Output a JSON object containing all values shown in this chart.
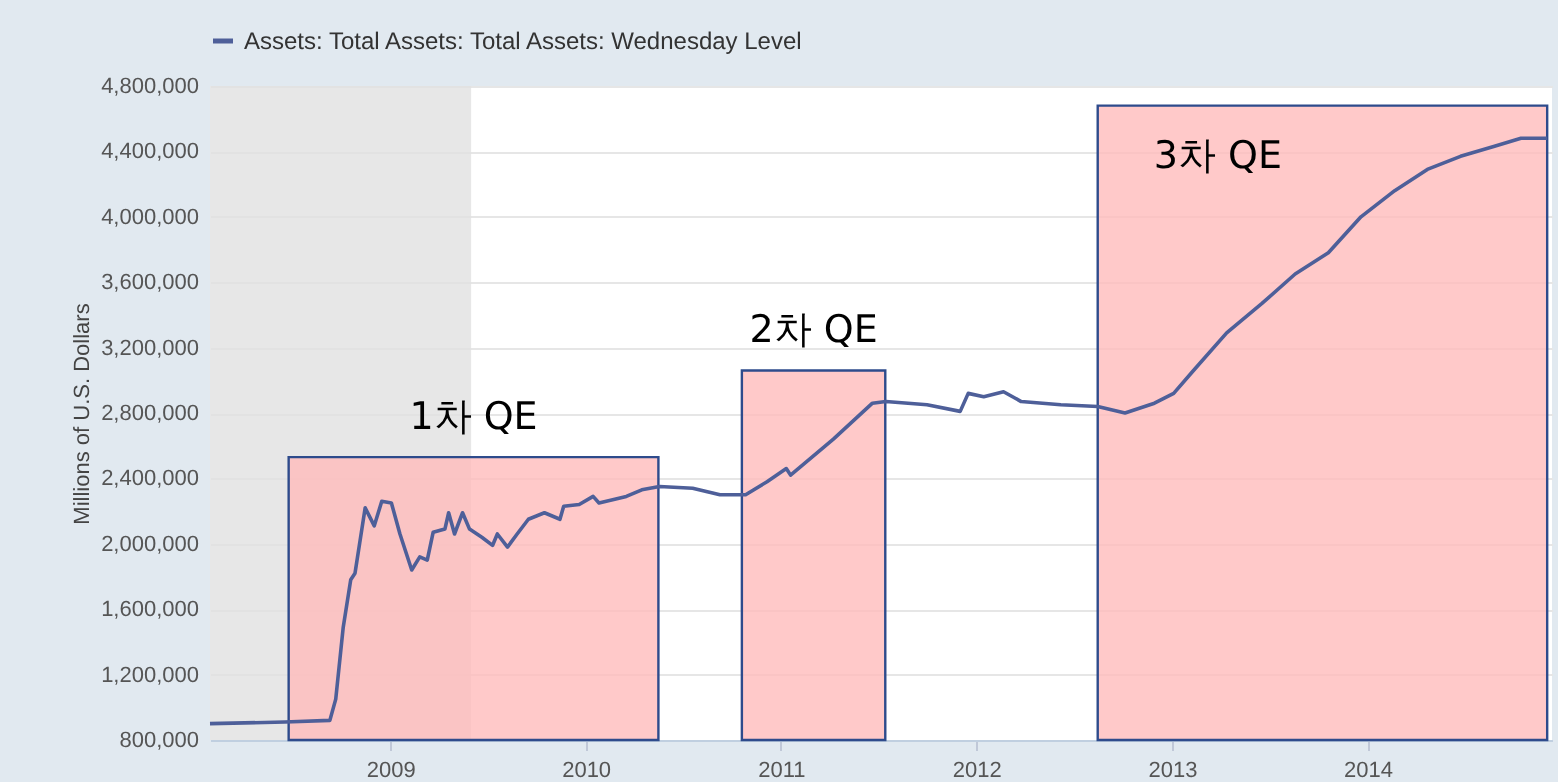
{
  "chart_data": {
    "type": "line",
    "ylabel": "Millions of U.S. Dollars",
    "legend": "top left",
    "grid": "y",
    "xlim": [
      "2008-01-30",
      "2014-12-12"
    ],
    "xticks": [
      "2009",
      "2010",
      "2011",
      "2012",
      "2013",
      "2014"
    ],
    "ylim": [
      800000,
      4800000
    ],
    "yticks": [
      {
        "value": 800000,
        "label": "800,000"
      },
      {
        "value": 1200000,
        "label": "1,200,000"
      },
      {
        "value": 1600000,
        "label": "1,600,000"
      },
      {
        "value": 2000000,
        "label": "2,000,000"
      },
      {
        "value": 2400000,
        "label": "2,400,000"
      },
      {
        "value": 2800000,
        "label": "2,800,000"
      },
      {
        "value": 3200000,
        "label": "3,200,000"
      },
      {
        "value": 3600000,
        "label": "3,600,000"
      },
      {
        "value": 4000000,
        "label": "4,000,000"
      },
      {
        "value": 4400000,
        "label": "4,400,000"
      },
      {
        "value": 4800000,
        "label": "4,800,000"
      }
    ],
    "bands": [
      {
        "axis": "x",
        "from": "2008-01-30",
        "to": "2009-06-01",
        "color": "#e1e1e1"
      },
      {
        "axis": "x",
        "from": "2008-06-25",
        "to": "2010-05-17",
        "label": "1차 QE",
        "color": "#ffbcbc"
      },
      {
        "axis": "x",
        "from": "2010-10-20",
        "to": "2011-07-15",
        "label": "2차 QE",
        "color": "#ffbcbc"
      },
      {
        "axis": "x",
        "from": "2012-08-15",
        "to": "2014-12-03",
        "label": "3차 QE",
        "color": "#ffbcbc"
      }
    ],
    "series": [
      {
        "name": "Assets: Total Assets: Total Assets: Wednesday Level",
        "color": "#4e5f99",
        "x": [
          "2008-01-30",
          "2008-06-18",
          "2008-09-10",
          "2008-09-21",
          "2008-10-05",
          "2008-10-19",
          "2008-10-27",
          "2008-11-15",
          "2008-12-02",
          "2008-12-16",
          "2009-01-03",
          "2009-01-19",
          "2009-02-10",
          "2009-02-25",
          "2009-03-11",
          "2009-03-22",
          "2009-04-13",
          "2009-04-20",
          "2009-05-01",
          "2009-05-16",
          "2009-05-29",
          "2009-06-21",
          "2009-07-11",
          "2009-07-20",
          "2009-08-08",
          "2009-08-26",
          "2009-09-16",
          "2009-10-16",
          "2009-11-14",
          "2009-11-21",
          "2009-12-20",
          "2010-01-15",
          "2010-01-26",
          "2010-03-18",
          "2010-04-16",
          "2010-05-19",
          "2010-07-20",
          "2010-09-09",
          "2010-10-27",
          "2010-12-06",
          "2011-01-11",
          "2011-01-19",
          "2011-04-09",
          "2011-06-21",
          "2011-07-16",
          "2011-10-01",
          "2011-12-02",
          "2011-12-17",
          "2012-01-15",
          "2012-02-21",
          "2012-03-25",
          "2012-06-07",
          "2012-08-15",
          "2012-10-05",
          "2012-11-29",
          "2013-01-04",
          "2013-02-10",
          "2013-04-13",
          "2013-06-18",
          "2013-08-19",
          "2013-10-20",
          "2013-12-20",
          "2014-02-21",
          "2014-04-23",
          "2014-06-24",
          "2014-08-25",
          "2014-10-15",
          "2014-12-03"
        ],
        "values": [
          900000,
          910000,
          920000,
          1050000,
          1490000,
          1780000,
          1820000,
          2220000,
          2110000,
          2260000,
          2250000,
          2060000,
          1840000,
          1920000,
          1900000,
          2070000,
          2090000,
          2190000,
          2060000,
          2190000,
          2090000,
          2040000,
          1990000,
          2060000,
          1980000,
          2060000,
          2150000,
          2190000,
          2150000,
          2230000,
          2240000,
          2290000,
          2250000,
          2290000,
          2330000,
          2350000,
          2340000,
          2300000,
          2300000,
          2380000,
          2460000,
          2420000,
          2640000,
          2860000,
          2870000,
          2850000,
          2810000,
          2920000,
          2900000,
          2930000,
          2870000,
          2850000,
          2840000,
          2800000,
          2860000,
          2920000,
          3060000,
          3290000,
          3470000,
          3650000,
          3780000,
          4000000,
          4160000,
          4290000,
          4370000,
          4430000,
          4480000,
          4480000
        ]
      }
    ]
  }
}
